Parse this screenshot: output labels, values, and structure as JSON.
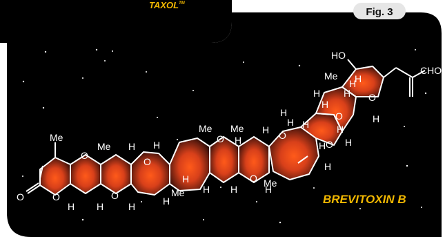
{
  "header": {
    "top_label": "TAXOL",
    "top_label_mark": "TM",
    "fig_label": "Fig. 3"
  },
  "molecule": {
    "name": "BREVITOXIN B"
  },
  "atoms": [
    {
      "t": "Me"
    },
    {
      "t": "O"
    },
    {
      "t": "O"
    },
    {
      "t": "H"
    },
    {
      "t": "O"
    },
    {
      "t": "Me"
    },
    {
      "t": "H"
    },
    {
      "t": "H"
    },
    {
      "t": "H"
    },
    {
      "t": "H"
    },
    {
      "t": "O"
    },
    {
      "t": "H"
    },
    {
      "t": "H"
    },
    {
      "t": "O"
    },
    {
      "t": "H"
    },
    {
      "t": "H"
    },
    {
      "t": "Me"
    },
    {
      "t": "Me"
    },
    {
      "t": "Me"
    },
    {
      "t": "O"
    },
    {
      "t": "O"
    },
    {
      "t": "H"
    },
    {
      "t": "H"
    },
    {
      "t": "H"
    },
    {
      "t": "H"
    },
    {
      "t": "H"
    },
    {
      "t": "O"
    },
    {
      "t": "Me"
    },
    {
      "t": "H"
    },
    {
      "t": "H"
    },
    {
      "t": "H"
    },
    {
      "t": "O"
    },
    {
      "t": "H"
    },
    {
      "t": "H"
    },
    {
      "t": "H"
    },
    {
      "t": "H"
    },
    {
      "t": "O"
    },
    {
      "t": "H"
    },
    {
      "t": "H"
    },
    {
      "t": "H"
    },
    {
      "t": "O"
    },
    {
      "t": "Me"
    },
    {
      "t": "HO"
    },
    {
      "t": "CHO"
    },
    {
      "t": "H"
    }
  ],
  "colors": {
    "panel": "#000000",
    "ring_fill_inner": "#ff5a1a",
    "ring_fill_outer": "#4a1308",
    "bond": "#ffffff",
    "title": "#f2b800"
  }
}
